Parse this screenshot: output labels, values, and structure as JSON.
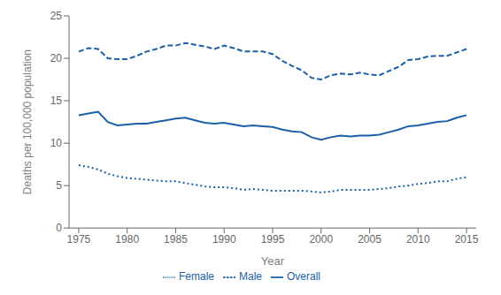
{
  "chart_data": {
    "type": "line",
    "xlabel": "Year",
    "ylabel": "Deaths per 100,000 population",
    "x": [
      1975,
      1976,
      1977,
      1978,
      1979,
      1980,
      1981,
      1982,
      1983,
      1984,
      1985,
      1986,
      1987,
      1988,
      1989,
      1990,
      1991,
      1992,
      1993,
      1994,
      1995,
      1996,
      1997,
      1998,
      1999,
      2000,
      2001,
      2002,
      2003,
      2004,
      2005,
      2006,
      2007,
      2008,
      2009,
      2010,
      2011,
      2012,
      2013,
      2014,
      2015
    ],
    "series": [
      {
        "name": "Overall",
        "color": "#1a5fa8",
        "line_style": "solid",
        "values": [
          13.3,
          13.5,
          13.7,
          12.5,
          12.1,
          12.2,
          12.3,
          12.3,
          12.5,
          12.7,
          12.9,
          13.0,
          12.7,
          12.4,
          12.3,
          12.4,
          12.2,
          12.0,
          12.1,
          12.0,
          11.9,
          11.6,
          11.4,
          11.3,
          10.7,
          10.4,
          10.7,
          10.9,
          10.8,
          10.9,
          10.9,
          11.0,
          11.3,
          11.6,
          12.0,
          12.1,
          12.3,
          12.5,
          12.6,
          13.0,
          13.3
        ]
      },
      {
        "name": "Male",
        "color": "#1a5fa8",
        "line_style": "dashed",
        "values": [
          20.8,
          21.2,
          21.1,
          20.0,
          19.9,
          19.9,
          20.3,
          20.8,
          21.1,
          21.5,
          21.5,
          21.8,
          21.6,
          21.4,
          21.1,
          21.5,
          21.2,
          20.8,
          20.8,
          20.8,
          20.5,
          19.7,
          19.1,
          18.6,
          17.7,
          17.5,
          18.0,
          18.2,
          18.1,
          18.3,
          18.1,
          18.0,
          18.5,
          19.0,
          19.8,
          19.9,
          20.2,
          20.3,
          20.3,
          20.7,
          21.1
        ]
      },
      {
        "name": "Female",
        "color": "#1a5fa8",
        "line_style": "dotted",
        "values": [
          7.4,
          7.2,
          6.9,
          6.4,
          6.1,
          5.9,
          5.8,
          5.7,
          5.6,
          5.5,
          5.5,
          5.3,
          5.1,
          4.9,
          4.8,
          4.8,
          4.7,
          4.5,
          4.6,
          4.5,
          4.4,
          4.4,
          4.4,
          4.4,
          4.3,
          4.2,
          4.3,
          4.5,
          4.5,
          4.5,
          4.5,
          4.6,
          4.7,
          4.9,
          5.0,
          5.2,
          5.3,
          5.5,
          5.5,
          5.8,
          6.0
        ]
      }
    ],
    "xlim": [
      1974,
      2016
    ],
    "ylim": [
      0,
      25
    ],
    "xticks": [
      1975,
      1980,
      1985,
      1990,
      1995,
      2000,
      2005,
      2010,
      2015
    ],
    "yticks": [
      0,
      5,
      10,
      15,
      20,
      25
    ],
    "grid": false,
    "legend": "bottom"
  }
}
